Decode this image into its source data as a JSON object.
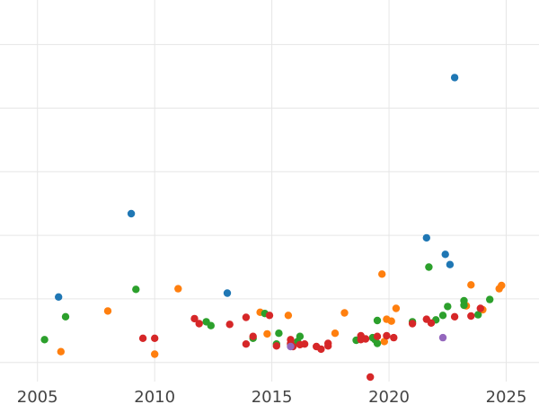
{
  "chart_data": {
    "type": "scatter",
    "title": "",
    "xlabel": "",
    "ylabel": "",
    "xlim": [
      2003.4,
      2026.4
    ],
    "ylim": [
      -0.3,
      5.7
    ],
    "grid": true,
    "x_ticks": [
      "2005",
      "2010",
      "2015",
      "2020",
      "2025"
    ],
    "colors": {
      "blue": "#1f77b4",
      "orange": "#ff7f0e",
      "green": "#2ca02c",
      "red": "#d62728",
      "purple": "#9467bd",
      "grid": "#e6e6e6"
    },
    "series": [
      {
        "color": "#1f77b4",
        "points": [
          [
            2005.9,
            1.03
          ],
          [
            2009.0,
            2.34
          ],
          [
            2013.1,
            1.09
          ],
          [
            2021.6,
            1.96
          ],
          [
            2022.4,
            1.7
          ],
          [
            2022.6,
            1.54
          ],
          [
            2022.8,
            4.48
          ]
        ]
      },
      {
        "color": "#ff7f0e",
        "points": [
          [
            2006.0,
            0.17
          ],
          [
            2008.0,
            0.81
          ],
          [
            2010.0,
            0.13
          ],
          [
            2011.0,
            1.16
          ],
          [
            2014.5,
            0.79
          ],
          [
            2014.8,
            0.45
          ],
          [
            2015.7,
            0.74
          ],
          [
            2017.7,
            0.46
          ],
          [
            2018.1,
            0.78
          ],
          [
            2019.7,
            1.39
          ],
          [
            2019.8,
            0.33
          ],
          [
            2019.9,
            0.68
          ],
          [
            2020.1,
            0.65
          ],
          [
            2020.3,
            0.85
          ],
          [
            2023.3,
            0.89
          ],
          [
            2023.5,
            1.22
          ],
          [
            2024.0,
            0.83
          ],
          [
            2024.7,
            1.16
          ],
          [
            2024.8,
            1.21
          ]
        ]
      },
      {
        "color": "#2ca02c",
        "points": [
          [
            2005.3,
            0.36
          ],
          [
            2006.2,
            0.72
          ],
          [
            2009.2,
            1.15
          ],
          [
            2012.2,
            0.64
          ],
          [
            2012.4,
            0.58
          ],
          [
            2014.2,
            0.38
          ],
          [
            2014.7,
            0.77
          ],
          [
            2015.2,
            0.29
          ],
          [
            2015.3,
            0.46
          ],
          [
            2015.8,
            0.28
          ],
          [
            2016.1,
            0.33
          ],
          [
            2016.2,
            0.41
          ],
          [
            2018.6,
            0.35
          ],
          [
            2019.3,
            0.39
          ],
          [
            2019.4,
            0.36
          ],
          [
            2019.5,
            0.3
          ],
          [
            2019.5,
            0.66
          ],
          [
            2021.0,
            0.64
          ],
          [
            2021.7,
            1.5
          ],
          [
            2022.0,
            0.67
          ],
          [
            2022.3,
            0.74
          ],
          [
            2022.5,
            0.88
          ],
          [
            2023.2,
            0.9
          ],
          [
            2023.2,
            0.97
          ],
          [
            2023.8,
            0.75
          ],
          [
            2024.3,
            0.99
          ]
        ]
      },
      {
        "color": "#d62728",
        "points": [
          [
            2009.5,
            0.38
          ],
          [
            2010.0,
            0.38
          ],
          [
            2011.7,
            0.69
          ],
          [
            2011.9,
            0.61
          ],
          [
            2013.2,
            0.6
          ],
          [
            2013.9,
            0.71
          ],
          [
            2013.9,
            0.29
          ],
          [
            2014.2,
            0.41
          ],
          [
            2014.9,
            0.74
          ],
          [
            2015.2,
            0.26
          ],
          [
            2015.8,
            0.36
          ],
          [
            2015.8,
            0.3
          ],
          [
            2015.9,
            0.25
          ],
          [
            2016.2,
            0.28
          ],
          [
            2016.4,
            0.29
          ],
          [
            2016.9,
            0.25
          ],
          [
            2017.1,
            0.21
          ],
          [
            2017.4,
            0.26
          ],
          [
            2017.4,
            0.3
          ],
          [
            2018.8,
            0.42
          ],
          [
            2018.8,
            0.36
          ],
          [
            2019.0,
            0.37
          ],
          [
            2019.2,
            -0.23
          ],
          [
            2019.5,
            0.41
          ],
          [
            2019.9,
            0.42
          ],
          [
            2020.2,
            0.39
          ],
          [
            2021.0,
            0.61
          ],
          [
            2021.6,
            0.68
          ],
          [
            2021.8,
            0.62
          ],
          [
            2022.8,
            0.72
          ],
          [
            2023.5,
            0.73
          ],
          [
            2023.9,
            0.85
          ]
        ]
      },
      {
        "color": "#9467bd",
        "points": [
          [
            2015.8,
            0.25
          ],
          [
            2022.3,
            0.39
          ]
        ]
      }
    ]
  }
}
